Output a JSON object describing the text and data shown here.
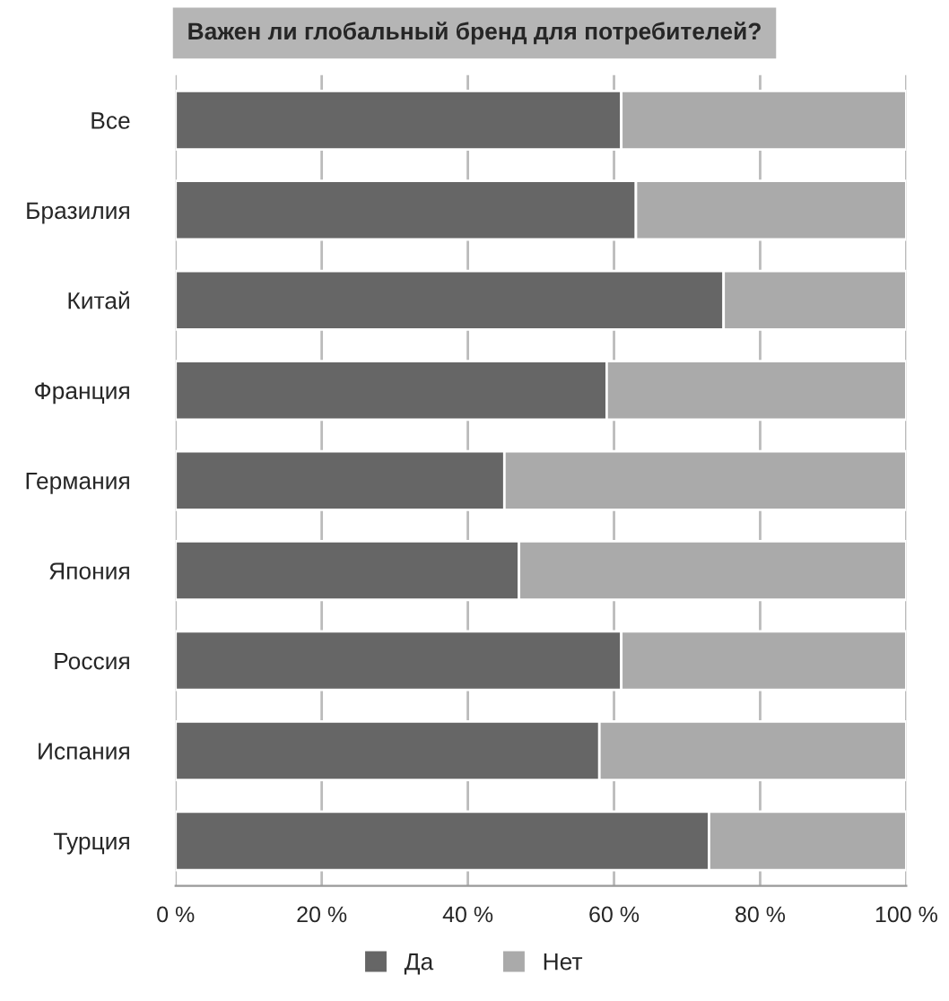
{
  "chart_data": {
    "type": "bar",
    "orientation": "horizontal",
    "stacked": true,
    "title": "Важен ли глобальный бренд для потребителей?",
    "categories": [
      "Все",
      "Бразилия",
      "Китай",
      "Франция",
      "Германия",
      "Япония",
      "Россия",
      "Испания",
      "Турция"
    ],
    "series": [
      {
        "name": "Да",
        "color": "#666666",
        "values": [
          61,
          63,
          75,
          59,
          45,
          47,
          61,
          58,
          73
        ]
      },
      {
        "name": "Нет",
        "color": "#aaaaaa",
        "values": [
          39,
          37,
          25,
          41,
          55,
          53,
          39,
          42,
          27
        ]
      }
    ],
    "xlim": [
      0,
      100
    ],
    "xticks": [
      {
        "value": 0,
        "label": "0 %"
      },
      {
        "value": 20,
        "label": "20 %"
      },
      {
        "value": 40,
        "label": "40 %"
      },
      {
        "value": 60,
        "label": "60 %"
      },
      {
        "value": 80,
        "label": "80 %"
      },
      {
        "value": 100,
        "label": "100 %"
      }
    ],
    "grid": "x",
    "legend": "bottom"
  }
}
